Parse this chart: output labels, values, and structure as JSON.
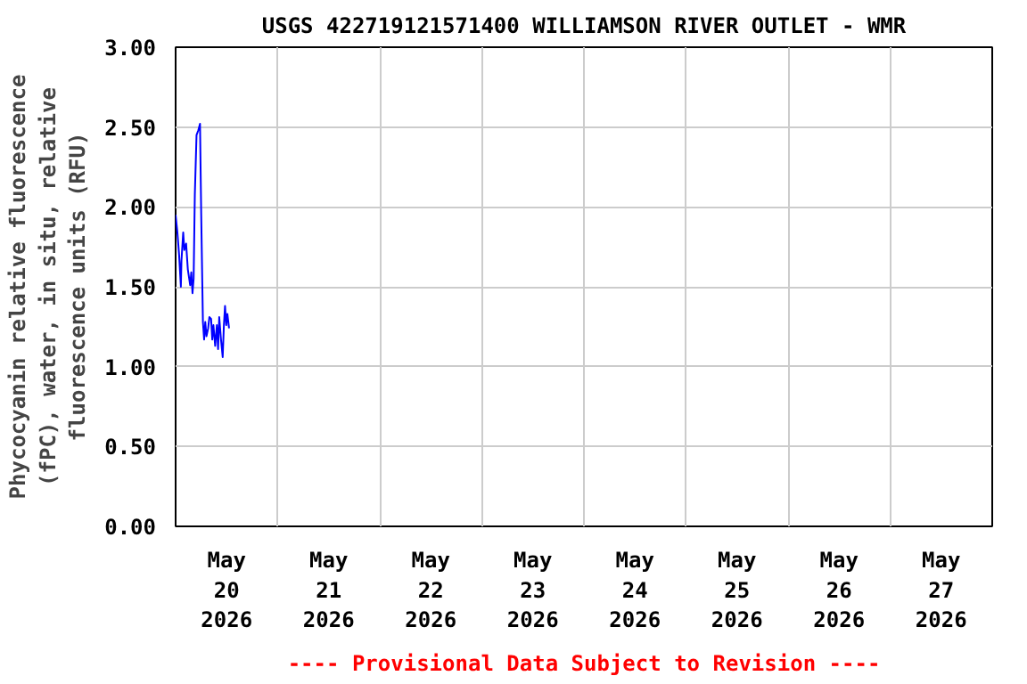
{
  "chart_data": {
    "type": "line",
    "title": "USGS 422719121571400 WILLIAMSON RIVER OUTLET - WMR",
    "ylabel": "Phycocyanin relative fluorescence\n(fPC), water, in situ, relative\nfluorescence units (RFU)",
    "annotations": [
      "---- Provisional Data Subject to Revision ----"
    ],
    "x": [
      "2026-05-20T00:00",
      "2026-05-20T00:25",
      "2026-05-20T00:49",
      "2026-05-20T01:14",
      "2026-05-20T01:22",
      "2026-05-20T01:47",
      "2026-05-20T02:03",
      "2026-05-20T02:28",
      "2026-05-20T02:52",
      "2026-05-20T03:25",
      "2026-05-20T03:41",
      "2026-05-20T03:58",
      "2026-05-20T04:14",
      "2026-05-20T04:31",
      "2026-05-20T04:55",
      "2026-05-20T05:20",
      "2026-05-20T05:44",
      "2026-05-20T06:01",
      "2026-05-20T06:25",
      "2026-05-20T06:42",
      "2026-05-20T06:58",
      "2026-05-20T07:15",
      "2026-05-20T07:39",
      "2026-05-20T07:56",
      "2026-05-20T08:20",
      "2026-05-20T08:37",
      "2026-05-20T08:53",
      "2026-05-20T09:18",
      "2026-05-20T09:42",
      "2026-05-20T09:59",
      "2026-05-20T10:15",
      "2026-05-20T10:40",
      "2026-05-20T11:04",
      "2026-05-20T11:21",
      "2026-05-20T11:37",
      "2026-05-20T11:54",
      "2026-05-20T12:10",
      "2026-05-20T12:34"
    ],
    "series": [
      {
        "color": "#0000ff",
        "values": [
          1.95,
          1.84,
          1.7,
          1.5,
          1.66,
          1.84,
          1.73,
          1.77,
          1.61,
          1.51,
          1.59,
          1.46,
          1.55,
          2.08,
          2.45,
          2.48,
          2.52,
          1.95,
          1.28,
          1.17,
          1.28,
          1.19,
          1.24,
          1.31,
          1.3,
          1.17,
          1.26,
          1.13,
          1.26,
          1.11,
          1.31,
          1.17,
          1.06,
          1.26,
          1.38,
          1.26,
          1.33,
          1.24
        ]
      }
    ],
    "xlim": [
      "2026-05-20T00:00",
      "2026-05-28T00:00"
    ],
    "xticks": [
      {
        "value": "2026-05-20T12:00",
        "label": "May\n20\n2026"
      },
      {
        "value": "2026-05-21T00:00",
        "label": null
      },
      {
        "value": "2026-05-21T12:00",
        "label": "May\n21\n2026"
      },
      {
        "value": "2026-05-22T00:00",
        "label": null
      },
      {
        "value": "2026-05-22T12:00",
        "label": "May\n22\n2026"
      },
      {
        "value": "2026-05-23T00:00",
        "label": null
      },
      {
        "value": "2026-05-23T12:00",
        "label": "May\n23\n2026"
      },
      {
        "value": "2026-05-24T00:00",
        "label": null
      },
      {
        "value": "2026-05-24T12:00",
        "label": "May\n24\n2026"
      },
      {
        "value": "2026-05-25T00:00",
        "label": null
      },
      {
        "value": "2026-05-25T12:00",
        "label": "May\n25\n2026"
      },
      {
        "value": "2026-05-26T00:00",
        "label": null
      },
      {
        "value": "2026-05-26T12:00",
        "label": "May\n26\n2026"
      },
      {
        "value": "2026-05-27T00:00",
        "label": null
      },
      {
        "value": "2026-05-27T12:00",
        "label": "May\n27\n2026"
      }
    ],
    "ylim": [
      0,
      3
    ],
    "yticks": [
      {
        "value": 0,
        "label": "0.00"
      },
      {
        "value": 0.5,
        "label": "0.50"
      },
      {
        "value": 1,
        "label": "1.00"
      },
      {
        "value": 1.5,
        "label": "1.50"
      },
      {
        "value": 2,
        "label": "2.00"
      },
      {
        "value": 2.5,
        "label": "2.50"
      },
      {
        "value": 3,
        "label": "3.00"
      }
    ],
    "grid": true,
    "line_style": "solid"
  }
}
